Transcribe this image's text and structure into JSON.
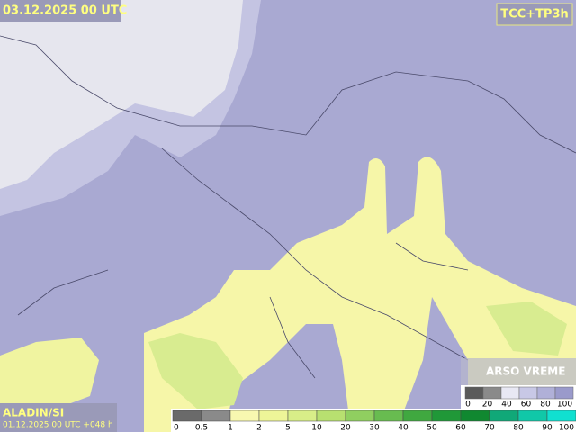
{
  "header": {
    "valid_time": "03.12.2025 00 UTC",
    "product": "TCC+TP3h"
  },
  "footer": {
    "model": "ALADIN/SI",
    "run": "01.12.2025 00 UTC +048 h",
    "brand": "ARSO VREME"
  },
  "cloud_legend": {
    "labels": [
      "0",
      "20",
      "40",
      "60",
      "80",
      "100"
    ],
    "colors": [
      "#5a5a5a",
      "#8a8a8a",
      "#e8e8f4",
      "#c8c8e6",
      "#b0b0d8",
      "#9a9acb"
    ]
  },
  "precip_legend": {
    "labels": [
      "0",
      "0.5",
      "1",
      "2",
      "5",
      "10",
      "20",
      "30",
      "40",
      "50",
      "60",
      "70",
      "80",
      "90",
      "100"
    ],
    "colors": [
      "#6a6a6a",
      "#8a8a8a",
      "#f8f8b0",
      "#eef598",
      "#d8ee88",
      "#b8e070",
      "#90cf60",
      "#68bc50",
      "#40a840",
      "#209838",
      "#108830",
      "#10a878",
      "#10c8a8",
      "#10e0d0"
    ]
  }
}
